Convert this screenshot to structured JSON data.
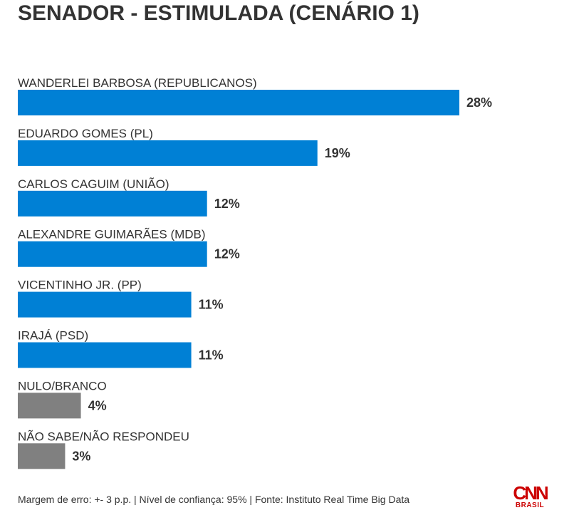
{
  "chart_data": {
    "type": "bar",
    "orientation": "horizontal",
    "title": "SENADOR - ESTIMULADA (CENÁRIO 1)",
    "categories": [
      "WANDERLEI BARBOSA (REPUBLICANOS)",
      "EDUARDO GOMES (PL)",
      "CARLOS CAGUIM (UNIÃO)",
      "ALEXANDRE GUIMARÃES (MDB)",
      "VICENTINHO JR. (PP)",
      "IRAJÁ (PSD)",
      "NULO/BRANCO",
      "NÃO SABE/NÃO RESPONDEU"
    ],
    "values": [
      28,
      19,
      12,
      12,
      11,
      11,
      4,
      3
    ],
    "value_labels": [
      "28%",
      "19%",
      "12%",
      "12%",
      "11%",
      "11%",
      "4%",
      "3%"
    ],
    "bar_colors": [
      "#0080d5",
      "#0080d5",
      "#0080d5",
      "#0080d5",
      "#0080d5",
      "#0080d5",
      "#808080",
      "#808080"
    ],
    "xlabel": "",
    "ylabel": "",
    "xlim": [
      0,
      28
    ],
    "grid": false
  },
  "footer": {
    "note": "Margem de erro: +- 3 p.p. | Nível de confiança: 95% | Fonte: Instituto Real Time Big Data"
  },
  "logo": {
    "name": "CNN",
    "sub": "BRASIL",
    "color": "#cc0000"
  }
}
